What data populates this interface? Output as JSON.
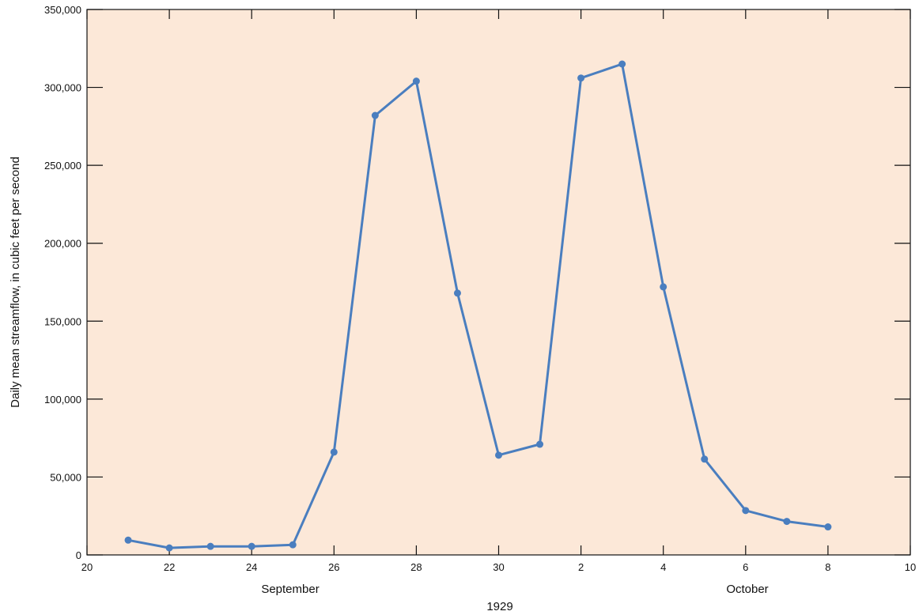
{
  "chart_data": {
    "type": "line",
    "title": "",
    "ylabel": "Daily mean streamflow, in cubic feet per second",
    "xlabel_year": "1929",
    "month_labels": [
      "September",
      "October"
    ],
    "x_tick_labels": [
      "20",
      "22",
      "24",
      "26",
      "28",
      "30",
      "2",
      "4",
      "6",
      "8",
      "10"
    ],
    "y_tick_labels": [
      "0",
      "50,000",
      "100,000",
      "150,000",
      "200,000",
      "250,000",
      "300,000",
      "350,000"
    ],
    "ylim": [
      0,
      350000
    ],
    "grid": false,
    "legend": "none",
    "colors": {
      "plot_background": "#fce8d8",
      "series": "#4a7ebf",
      "axis": "#111111"
    },
    "series": [
      {
        "x": [
          "1929-09-21",
          "1929-09-22",
          "1929-09-23",
          "1929-09-24",
          "1929-09-25",
          "1929-09-26",
          "1929-09-27",
          "1929-09-28",
          "1929-09-29",
          "1929-09-30",
          "1929-10-01",
          "1929-10-02",
          "1929-10-03",
          "1929-10-04",
          "1929-10-05",
          "1929-10-06",
          "1929-10-07",
          "1929-10-08"
        ],
        "values": [
          9500,
          4500,
          5500,
          5500,
          6500,
          66000,
          282000,
          304000,
          168000,
          64000,
          71000,
          306000,
          315000,
          172000,
          61500,
          28500,
          21500,
          18000
        ]
      }
    ]
  }
}
